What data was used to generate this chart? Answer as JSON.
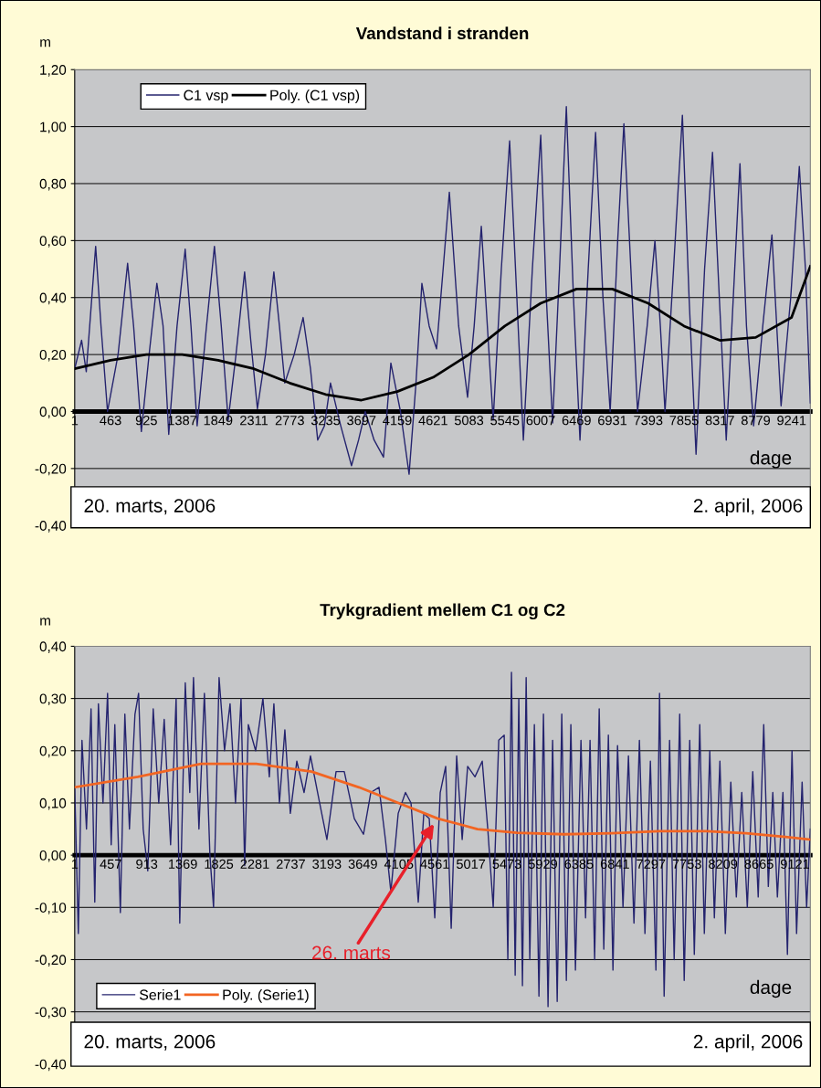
{
  "chart_data": [
    {
      "type": "line",
      "title": "Vandstand i stranden",
      "ylabel": "m",
      "xlabel": "dage",
      "xlim": [
        1,
        9483
      ],
      "xticks": [
        1,
        463,
        925,
        1387,
        1849,
        2311,
        2773,
        3235,
        3697,
        4159,
        4621,
        5083,
        5545,
        6007,
        6469,
        6931,
        7393,
        7855,
        8317,
        8779,
        9241
      ],
      "ylim": [
        -0.4,
        1.2
      ],
      "yticks": [
        {
          "value": -0.4,
          "label": "-0,40"
        },
        {
          "value": -0.2,
          "label": "-0,20"
        },
        {
          "value": 0,
          "label": "0,00"
        },
        {
          "value": 0.2,
          "label": "0,20"
        },
        {
          "value": 0.4,
          "label": "0,40"
        },
        {
          "value": 0.6,
          "label": "0,60"
        },
        {
          "value": 0.8,
          "label": "0,80"
        },
        {
          "value": 1.0,
          "label": "1,00"
        },
        {
          "value": 1.2,
          "label": "1,20"
        }
      ],
      "grid": "y",
      "legend": "top left",
      "annotations": [
        "20. marts, 2006",
        "2. april, 2006"
      ],
      "series": [
        {
          "name": "C1 vsp",
          "color": "#24236e",
          "x": [
            1,
            90,
            150,
            271,
            340,
            424,
            560,
            683,
            760,
            860,
            960,
            1060,
            1140,
            1213,
            1320,
            1425,
            1500,
            1579,
            1700,
            1802,
            1890,
            1979,
            2080,
            2191,
            2270,
            2356,
            2460,
            2568,
            2640,
            2709,
            2830,
            2945,
            3040,
            3133,
            3220,
            3298,
            3430,
            3569,
            3660,
            3746,
            3860,
            3981,
            4076,
            4200,
            4311,
            4400,
            4476,
            4570,
            4665,
            4750,
            4830,
            4950,
            5065,
            5150,
            5242,
            5320,
            5395,
            5500,
            5607,
            5700,
            5784,
            5900,
            6008,
            6080,
            6161,
            6250,
            6338,
            6430,
            6514,
            6620,
            6715,
            6810,
            6903,
            7000,
            7080,
            7170,
            7256,
            7380,
            7480,
            7550,
            7610,
            7720,
            7834,
            7920,
            8010,
            8120,
            8222,
            8310,
            8399,
            8490,
            8576,
            8660,
            8752,
            8870,
            8988,
            9050,
            9106,
            9230,
            9341,
            9420,
            9483
          ],
          "values": [
            0.15,
            0.25,
            0.14,
            0.58,
            0.3,
            0.0,
            0.2,
            0.52,
            0.3,
            -0.07,
            0.2,
            0.45,
            0.3,
            -0.08,
            0.3,
            0.57,
            0.3,
            -0.05,
            0.3,
            0.58,
            0.3,
            -0.03,
            0.2,
            0.49,
            0.25,
            0.01,
            0.2,
            0.49,
            0.3,
            0.1,
            0.2,
            0.33,
            0.15,
            -0.1,
            -0.05,
            0.1,
            -0.05,
            -0.19,
            -0.1,
            0.0,
            -0.1,
            -0.16,
            0.17,
            0.0,
            -0.22,
            0.1,
            0.45,
            0.3,
            0.22,
            0.5,
            0.77,
            0.3,
            0.05,
            0.3,
            0.65,
            0.3,
            -0.03,
            0.5,
            0.95,
            0.4,
            -0.1,
            0.5,
            0.97,
            0.4,
            -0.04,
            0.5,
            1.07,
            0.4,
            -0.1,
            0.5,
            0.98,
            0.4,
            0.0,
            0.6,
            1.01,
            0.5,
            0.0,
            0.3,
            0.6,
            0.3,
            0.0,
            0.5,
            1.04,
            0.4,
            -0.15,
            0.5,
            0.91,
            0.4,
            -0.1,
            0.4,
            0.87,
            0.3,
            -0.05,
            0.3,
            0.62,
            0.3,
            0.02,
            0.4,
            0.86,
            0.5,
            0.03
          ]
        },
        {
          "name": "Poly. (C1 vsp)",
          "color": "#000000",
          "x": [
            1,
            463,
            925,
            1387,
            1849,
            2311,
            2773,
            3235,
            3697,
            4159,
            4621,
            5083,
            5545,
            6007,
            6469,
            6931,
            7393,
            7855,
            8317,
            8779,
            9241,
            9483
          ],
          "values": [
            0.15,
            0.18,
            0.2,
            0.2,
            0.18,
            0.15,
            0.1,
            0.06,
            0.04,
            0.07,
            0.12,
            0.2,
            0.3,
            0.38,
            0.43,
            0.43,
            0.38,
            0.3,
            0.25,
            0.26,
            0.33,
            0.51
          ]
        }
      ]
    },
    {
      "type": "line",
      "title": "Trykgradient mellem C1 og C2",
      "ylabel": "m",
      "xlabel": "dage",
      "xlim": [
        1,
        9315
      ],
      "xticks": [
        1,
        457,
        913,
        1369,
        1825,
        2281,
        2737,
        3193,
        3649,
        4105,
        4561,
        5017,
        5473,
        5929,
        6385,
        6841,
        7297,
        7753,
        8209,
        8665,
        9121
      ],
      "ylim": [
        -0.4,
        0.4
      ],
      "yticks": [
        {
          "value": -0.4,
          "label": "-0,40"
        },
        {
          "value": -0.3,
          "label": "-0,30"
        },
        {
          "value": -0.2,
          "label": "-0,20"
        },
        {
          "value": -0.1,
          "label": "-0,10"
        },
        {
          "value": 0,
          "label": "0,00"
        },
        {
          "value": 0.1,
          "label": "0,10"
        },
        {
          "value": 0.2,
          "label": "0,20"
        },
        {
          "value": 0.3,
          "label": "0,30"
        },
        {
          "value": 0.4,
          "label": "0,40"
        }
      ],
      "grid": "y",
      "legend": "bottom left",
      "annotations": [
        "20. marts, 2006",
        "2. april, 2006",
        {
          "text": "26. marts",
          "x": 4550,
          "y": 0.06
        }
      ],
      "series": [
        {
          "name": "Serie1",
          "color": "#24236e",
          "x": [
            1,
            47,
            93,
            150,
            208,
            255,
            301,
            359,
            417,
            463,
            509,
            579,
            636,
            694,
            764,
            810,
            868,
            926,
            995,
            1065,
            1134,
            1215,
            1285,
            1331,
            1401,
            1458,
            1505,
            1574,
            1643,
            1713,
            1759,
            1829,
            1898,
            1968,
            2037,
            2107,
            2153,
            2199,
            2292,
            2384,
            2465,
            2523,
            2593,
            2662,
            2731,
            2813,
            2905,
            2986,
            3102,
            3194,
            3310,
            3414,
            3541,
            3657,
            3750,
            3854,
            3935,
            4004,
            4097,
            4189,
            4259,
            4351,
            4421,
            4490,
            4560,
            4629,
            4698,
            4768,
            4837,
            4907,
            4976,
            5069,
            5161,
            5231,
            5300,
            5370,
            5439,
            5485,
            5531,
            5578,
            5624,
            5670,
            5717,
            5763,
            5821,
            5879,
            5936,
            5994,
            6052,
            6110,
            6168,
            6226,
            6283,
            6341,
            6411,
            6469,
            6526,
            6584,
            6642,
            6700,
            6758,
            6816,
            6874,
            6943,
            7012,
            7082,
            7151,
            7221,
            7290,
            7360,
            7406,
            7464,
            7533,
            7591,
            7661,
            7718,
            7788,
            7846,
            7915,
            7973,
            8042,
            8100,
            8170,
            8239,
            8308,
            8378,
            8447,
            8517,
            8586,
            8655,
            8725,
            8783,
            8840,
            8898,
            8968,
            9025,
            9083,
            9141,
            9211,
            9268,
            9315
          ],
          "values": [
            0.13,
            -0.15,
            0.22,
            0.05,
            0.28,
            -0.09,
            0.29,
            0.1,
            0.31,
            0.02,
            0.25,
            -0.11,
            0.27,
            0.05,
            0.27,
            0.31,
            0.05,
            -0.03,
            0.28,
            0.1,
            0.26,
            0.02,
            0.3,
            -0.13,
            0.33,
            0.12,
            0.34,
            0.05,
            0.31,
            0.0,
            -0.1,
            0.34,
            0.2,
            0.29,
            0.1,
            0.3,
            -0.02,
            0.25,
            0.2,
            0.3,
            0.15,
            0.29,
            0.1,
            0.24,
            0.08,
            0.18,
            0.12,
            0.19,
            0.1,
            0.03,
            0.16,
            0.16,
            0.07,
            0.04,
            0.12,
            0.13,
            0.03,
            -0.07,
            0.08,
            0.12,
            0.1,
            -0.09,
            0.08,
            0.07,
            -0.12,
            0.12,
            0.17,
            -0.14,
            0.19,
            0.03,
            0.17,
            0.15,
            0.18,
            0.05,
            -0.1,
            0.22,
            0.23,
            -0.2,
            0.35,
            -0.23,
            0.3,
            -0.25,
            0.34,
            -0.2,
            0.25,
            -0.27,
            0.27,
            -0.29,
            0.22,
            -0.28,
            0.27,
            -0.24,
            0.25,
            -0.22,
            0.22,
            -0.12,
            0.22,
            -0.2,
            0.28,
            -0.18,
            0.23,
            -0.22,
            0.21,
            -0.1,
            0.19,
            -0.13,
            0.22,
            -0.15,
            0.18,
            -0.22,
            0.31,
            -0.27,
            0.22,
            -0.2,
            0.27,
            -0.24,
            0.22,
            -0.19,
            0.25,
            -0.15,
            0.2,
            -0.12,
            0.18,
            -0.15,
            0.14,
            -0.08,
            0.12,
            -0.1,
            0.16,
            -0.08,
            0.25,
            -0.06,
            0.12,
            -0.08,
            0.12,
            -0.19,
            0.2,
            -0.15,
            0.14,
            -0.1,
            0.05
          ]
        },
        {
          "name": "Poly. (Serie1)",
          "color": "#f26522",
          "x": [
            1,
            800,
            1600,
            2300,
            3000,
            3600,
            4100,
            4600,
            5100,
            5600,
            6200,
            6800,
            7400,
            8000,
            8500,
            9000,
            9315
          ],
          "values": [
            0.13,
            0.15,
            0.175,
            0.175,
            0.16,
            0.13,
            0.1,
            0.07,
            0.05,
            0.043,
            0.04,
            0.042,
            0.046,
            0.046,
            0.042,
            0.035,
            0.03
          ]
        }
      ]
    }
  ]
}
